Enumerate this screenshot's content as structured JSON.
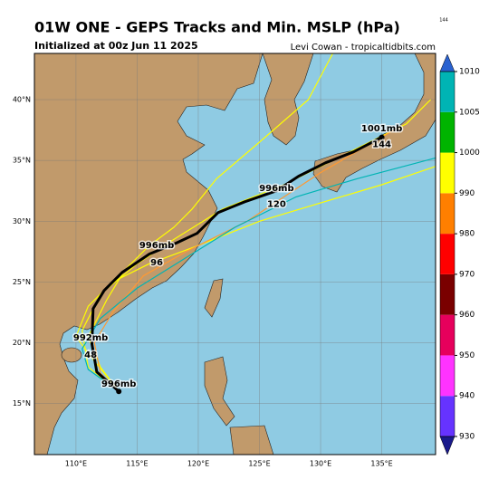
{
  "chart_data": {
    "type": "track-map",
    "title": "01W ONE - GEPS Tracks and Min. MSLP (hPa)",
    "subtitle": "Initialized at 00z Jun 11 2025",
    "credit": "Levi Cowan - tropicaltidbits.com",
    "corner_note": "144",
    "xlim": [
      106.6,
      139.4
    ],
    "ylim": [
      10.8,
      43.8
    ],
    "xticks": [
      {
        "value": 110,
        "label": "110°E"
      },
      {
        "value": 115,
        "label": "115°E"
      },
      {
        "value": 120,
        "label": "120°E"
      },
      {
        "value": 125,
        "label": "125°E"
      },
      {
        "value": 130,
        "label": "130°E"
      },
      {
        "value": 135,
        "label": "135°E"
      }
    ],
    "yticks": [
      {
        "value": 15,
        "label": "15°N"
      },
      {
        "value": 20,
        "label": "20°N"
      },
      {
        "value": 25,
        "label": "25°N"
      },
      {
        "value": 30,
        "label": "30°N"
      },
      {
        "value": 35,
        "label": "35°N"
      },
      {
        "value": 40,
        "label": "40°N"
      }
    ],
    "grid": true,
    "colorbar": {
      "ticks": [
        930,
        940,
        950,
        960,
        970,
        980,
        990,
        1000,
        1005,
        1010
      ],
      "colors": [
        "#6633ff",
        "#ff33ff",
        "#e6005c",
        "#7a0000",
        "#ff0000",
        "#ff7f00",
        "#ffff00",
        "#00b400",
        "#00b4b4"
      ],
      "under_color": "#1a1a8c",
      "over_color": "#2a62d0"
    },
    "members": [
      {
        "color": "#ffff00",
        "lon": [
          113.5,
          111.0,
          110.5,
          112.0,
          115.0,
          118.0,
          122.0,
          127.0,
          132.0,
          137.0,
          139.0
        ],
        "lat": [
          16.0,
          18.0,
          21.0,
          24.0,
          26.5,
          28.5,
          31.0,
          33.0,
          35.5,
          38.0,
          40.0
        ]
      },
      {
        "color": "#ffff00",
        "lon": [
          113.5,
          112.0,
          111.0,
          112.5,
          114.0,
          116.0,
          118.0,
          119.5,
          121.5,
          125.0,
          129.0,
          131.0
        ],
        "lat": [
          16.0,
          18.0,
          20.5,
          23.5,
          26.0,
          28.0,
          29.5,
          31.0,
          33.5,
          36.5,
          40.0,
          43.8
        ]
      },
      {
        "color": "#ffff00",
        "lon": [
          113.5,
          111.5,
          110.0,
          111.0,
          113.0,
          116.0,
          120.0,
          125.0,
          130.0,
          135.0,
          139.4
        ],
        "lat": [
          16.0,
          18.5,
          20.5,
          23.0,
          25.0,
          26.5,
          28.0,
          30.0,
          31.5,
          33.0,
          34.5
        ]
      },
      {
        "color": "#ff9933",
        "lon": [
          113.5,
          112.0,
          111.5,
          113.0,
          115.5,
          119.0,
          124.0,
          130.0,
          136.0
        ],
        "lat": [
          16.0,
          17.5,
          20.0,
          22.5,
          25.5,
          27.5,
          30.0,
          34.0,
          37.5
        ]
      },
      {
        "color": "#00b4b4",
        "lon": [
          113.5,
          111.0,
          110.5,
          112.0,
          115.0,
          119.0,
          123.0,
          128.0,
          133.0,
          139.4
        ],
        "lat": [
          16.0,
          17.8,
          19.5,
          22.0,
          24.5,
          27.0,
          29.5,
          32.0,
          33.5,
          35.2
        ]
      }
    ],
    "mean_track": {
      "lon": [
        113.5,
        111.7,
        111.3,
        111.4,
        112.3,
        113.8,
        116.0,
        118.2,
        119.9,
        121.6,
        123.8,
        126.4,
        128.2,
        130.4,
        132.7,
        135.0
      ],
      "lat": [
        16.0,
        17.6,
        19.9,
        22.8,
        24.3,
        25.8,
        27.3,
        28.2,
        29.0,
        30.7,
        31.6,
        32.5,
        33.7,
        34.8,
        35.7,
        36.9
      ]
    },
    "annotations": [
      {
        "text": "996mb",
        "lon": 113.5,
        "lat": 16.6
      },
      {
        "text": "992mb",
        "lon": 111.2,
        "lat": 20.4
      },
      {
        "text": "48",
        "lon": 111.2,
        "lat": 19.0
      },
      {
        "text": "996mb",
        "lon": 116.6,
        "lat": 28.0
      },
      {
        "text": "96",
        "lon": 116.6,
        "lat": 26.6
      },
      {
        "text": "996mb",
        "lon": 126.4,
        "lat": 32.7
      },
      {
        "text": "120",
        "lon": 126.4,
        "lat": 31.4
      },
      {
        "text": "1001mb",
        "lon": 135.0,
        "lat": 37.6
      },
      {
        "text": "144",
        "lon": 135.0,
        "lat": 36.3
      }
    ]
  }
}
